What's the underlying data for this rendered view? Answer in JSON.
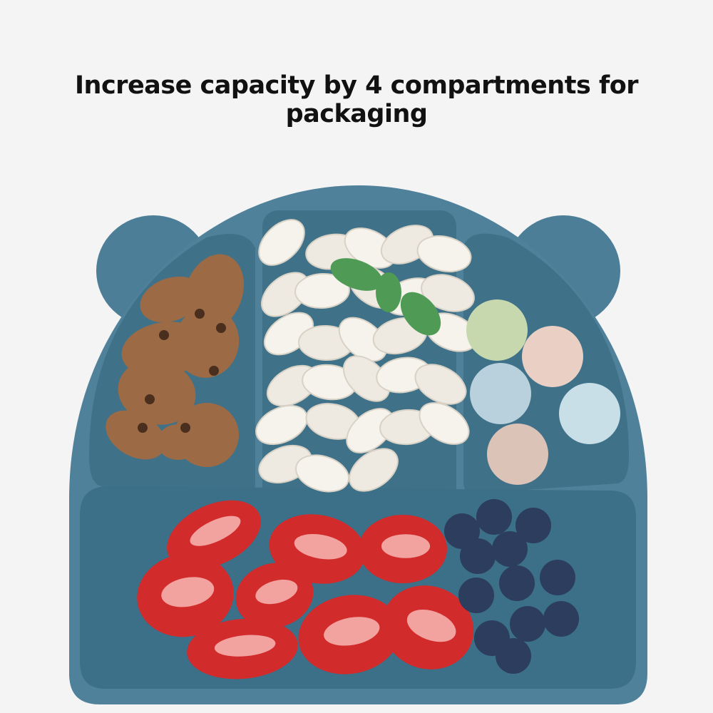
{
  "header": {
    "title": "Increase capacity by 4 compartments for packaging"
  }
}
